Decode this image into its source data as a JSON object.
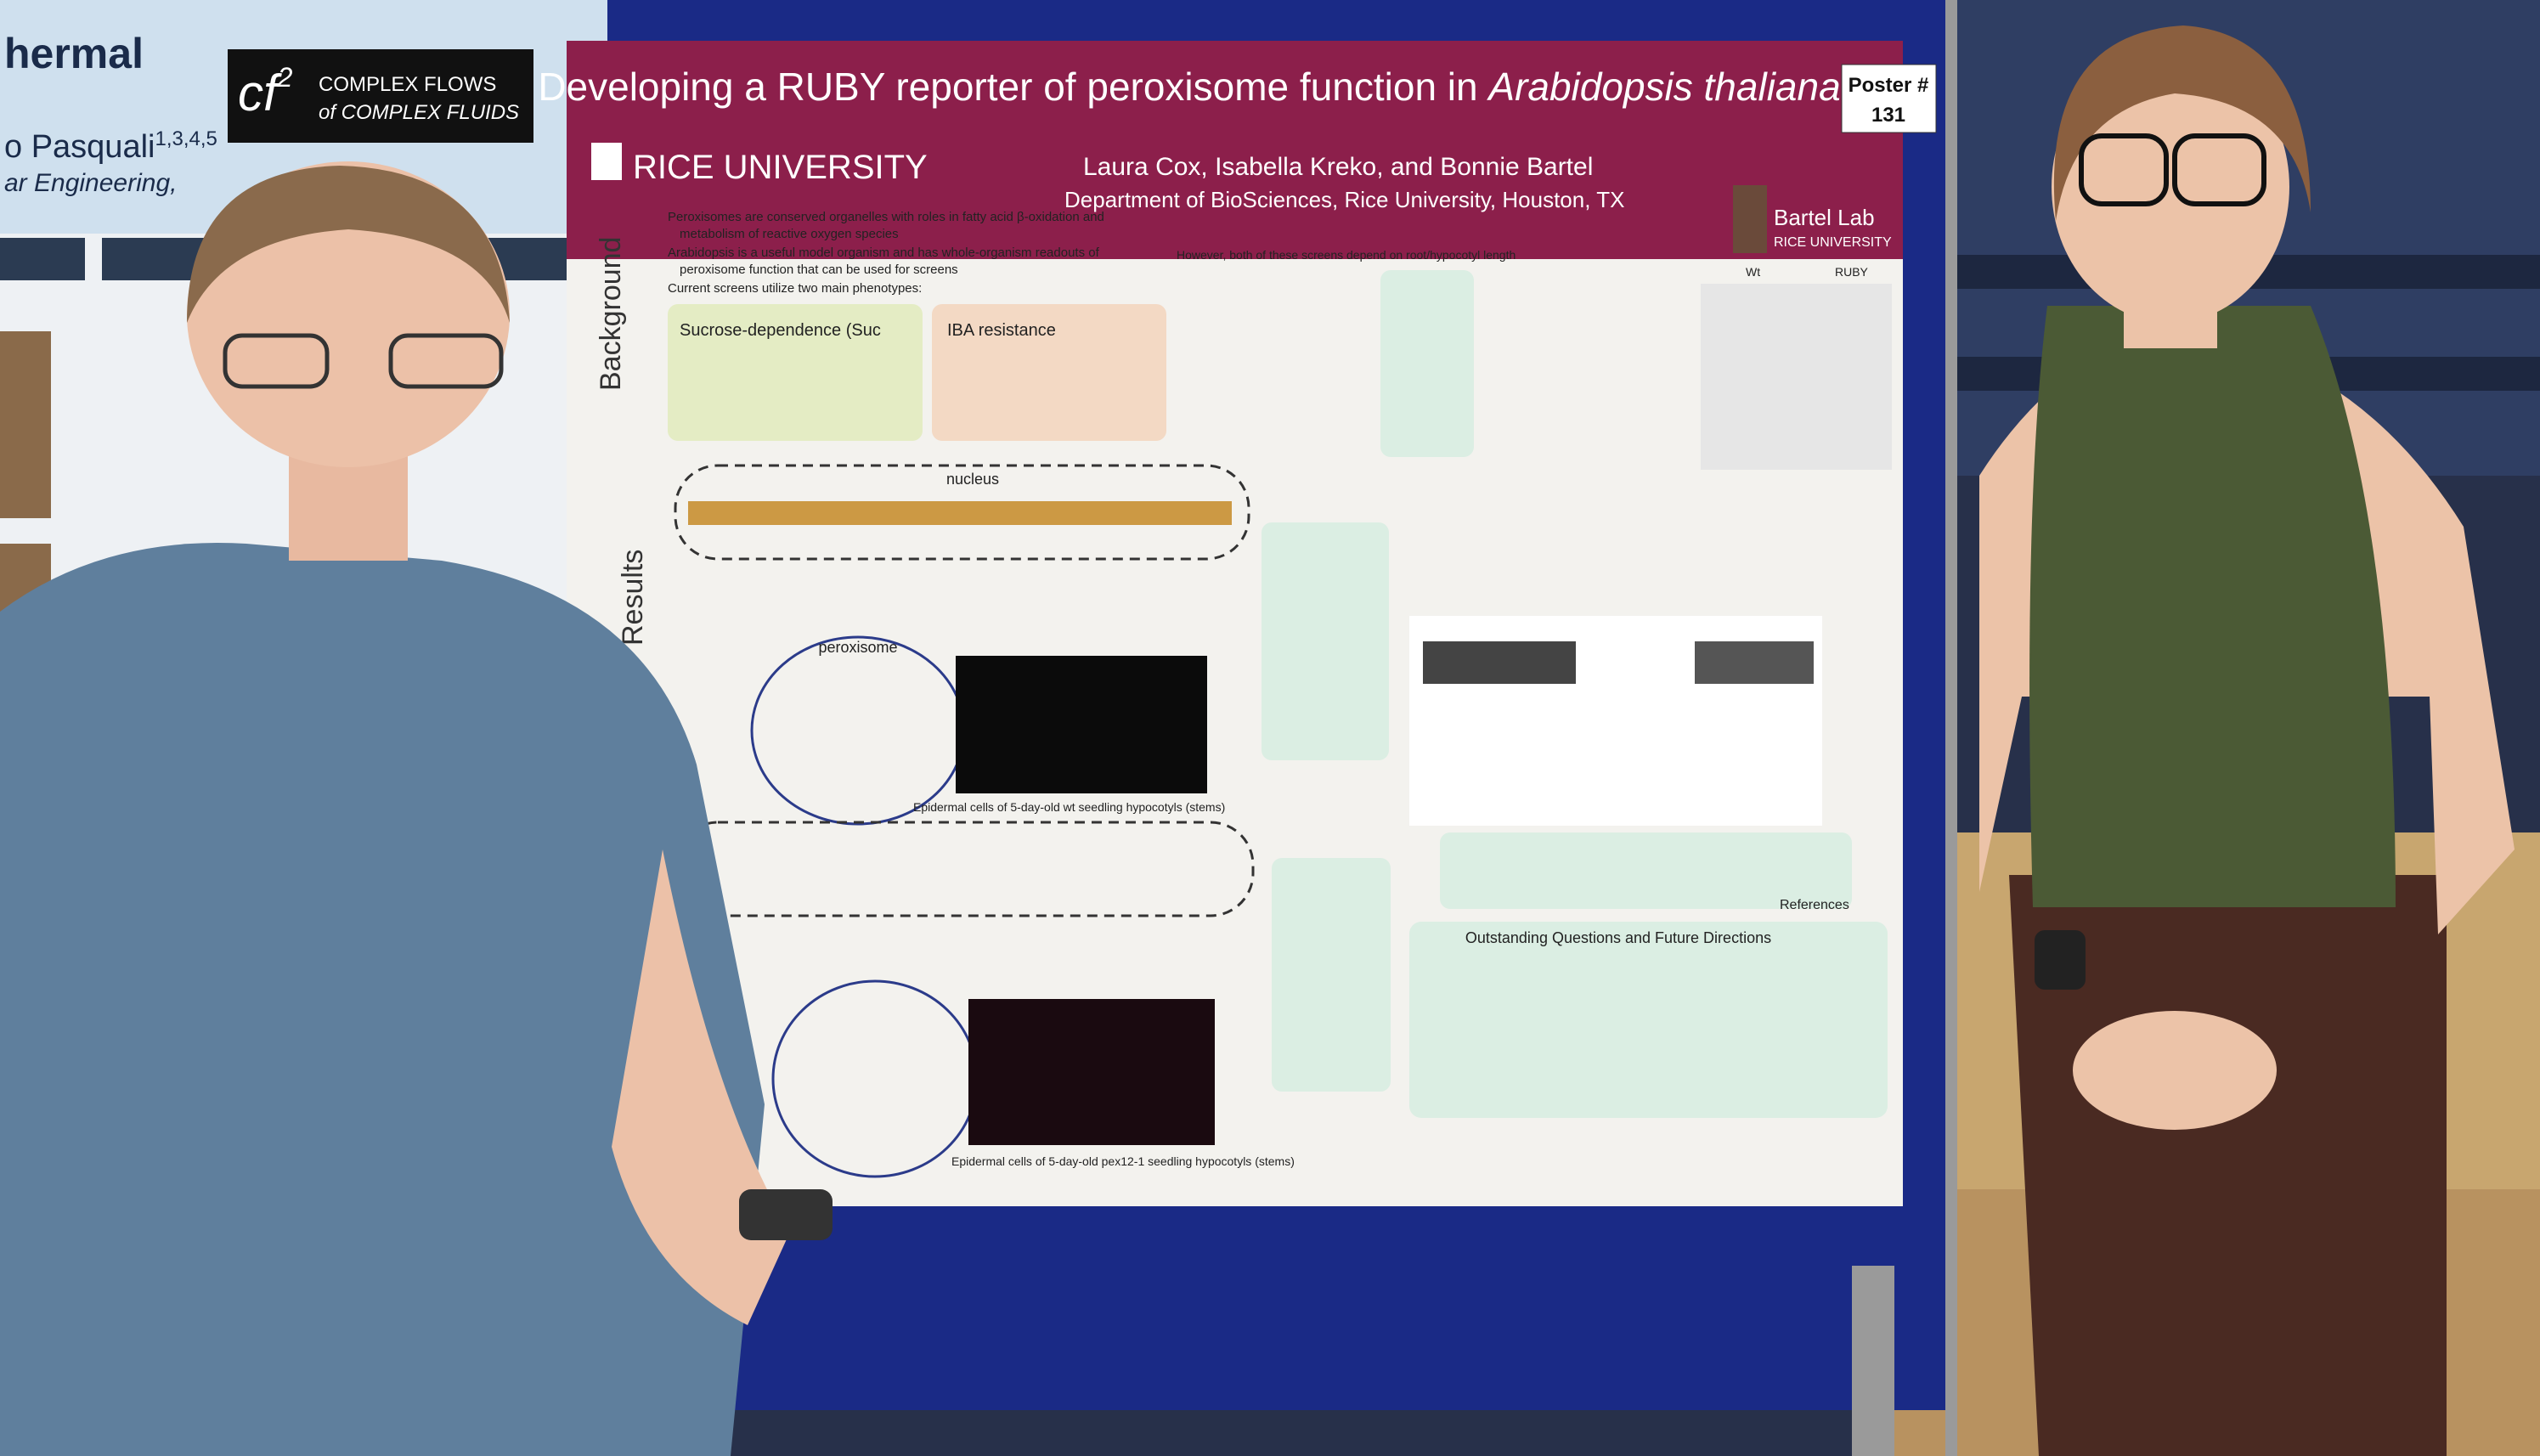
{
  "left_poster": {
    "title_fragment": "hermal",
    "author_fragment": "o Pasquali",
    "author_affiliations": "1,3,4,5",
    "department_fragment": "ar Engineering,",
    "logo_mark": "cf",
    "logo_exponent": "2",
    "logo_line1": "COMPLEX FLOWS",
    "logo_line2": "of COMPLEX FLUIDS"
  },
  "poster": {
    "number_label": "Poster #",
    "number": "131",
    "title_main": "Developing a RUBY reporter of peroxisome function in ",
    "title_italic": "Arabidopsis thaliana",
    "institution": "RICE UNIVERSITY",
    "authors": "Laura Cox, Isabella Kreko, and Bonnie Bartel",
    "department": "Department of BioSciences, Rice University, Houston, TX",
    "lab_name": "Bartel Lab",
    "lab_institution": "RICE UNIVERSITY",
    "sections": [
      "Background",
      "Results"
    ],
    "background_bullets": [
      "Peroxisomes are conserved organelles with roles in fatty acid β-oxidation and",
      "metabolism of reactive oxygen species",
      "Arabidopsis is a useful model organism and has whole-organism readouts of",
      "peroxisome function that can be used for screens",
      "Current screens utilize two main phenotypes:"
    ],
    "box_sucrose": "Sucrose-dependence (Suc",
    "box_iba": "IBA resistance",
    "side_note": "However, both of these screens depend on root/hypocotyl length",
    "nucleus_label": "nucleus",
    "peroxisome_label": "peroxisome",
    "micrograph_caption_1": "Epidermal cells of 5-day-old wt seedling hypocotyls (stems)",
    "micrograph_caption_2": "Epidermal cells of 5-day-old pex12-1 seedling hypocotyls (stems)",
    "plants_labels": [
      "Wt",
      "RUBY"
    ],
    "future_heading": "Outstanding Questions and Future Directions",
    "references_heading": "References"
  }
}
